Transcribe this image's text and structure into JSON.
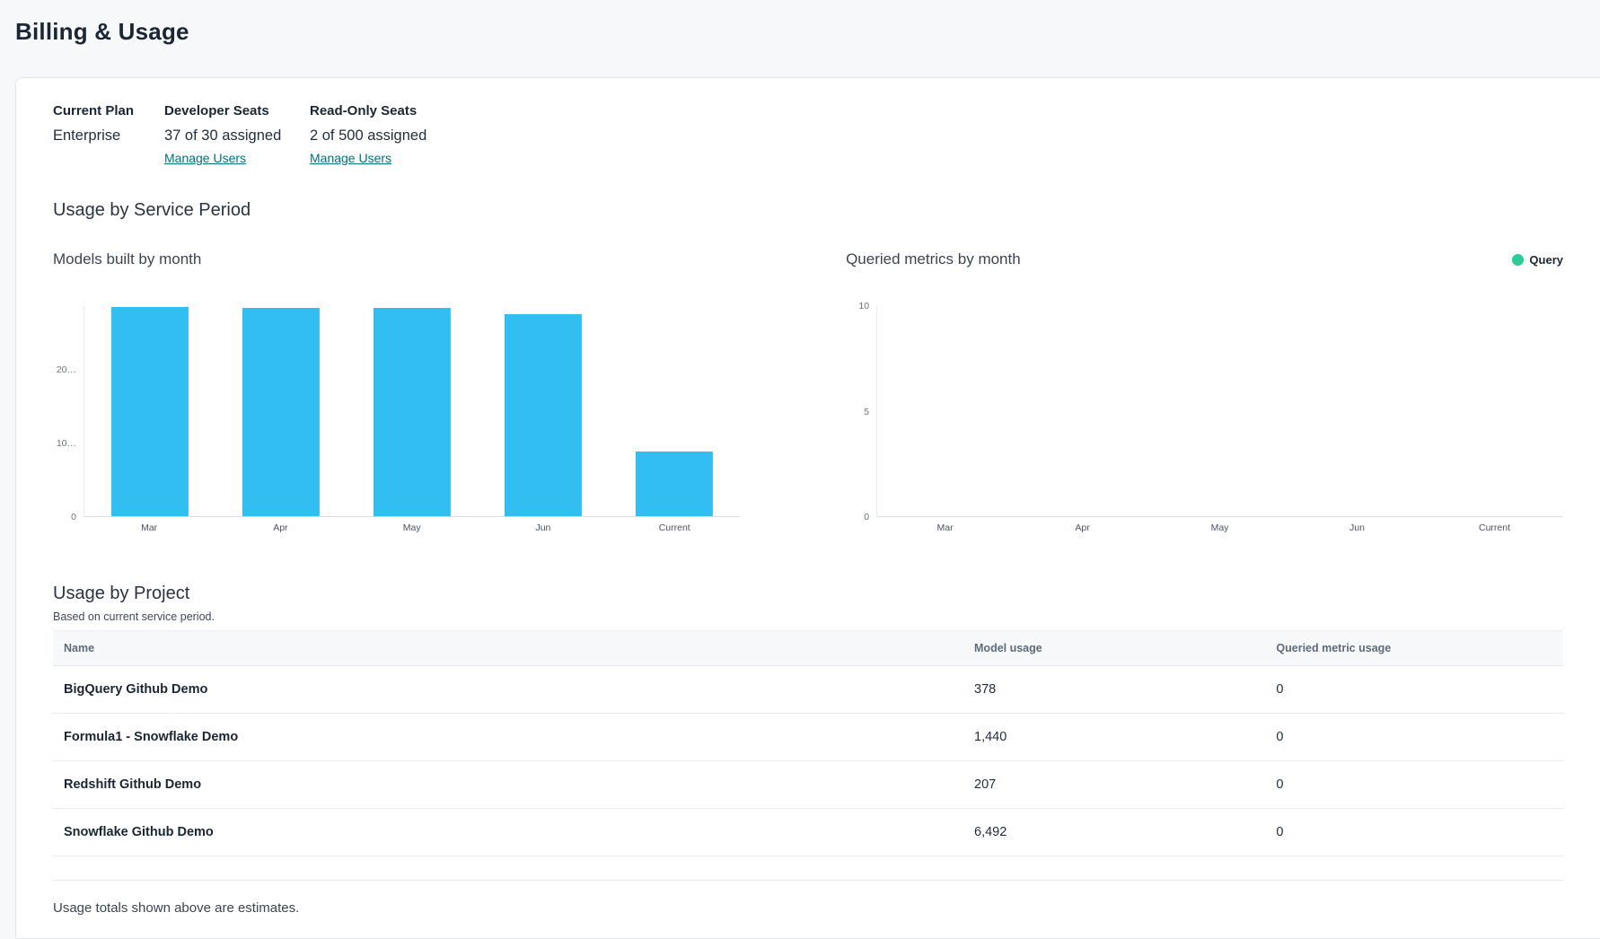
{
  "page": {
    "title": "Billing & Usage"
  },
  "plan": {
    "columns": [
      {
        "label": "Current Plan",
        "value": "Enterprise",
        "link": ""
      },
      {
        "label": "Developer Seats",
        "value": "37 of 30 assigned",
        "link": "Manage Users"
      },
      {
        "label": "Read-Only Seats",
        "value": "2 of 500 assigned",
        "link": "Manage Users"
      }
    ]
  },
  "usage_section": {
    "title": "Usage by Service Period"
  },
  "charts": [
    {
      "title": "Models built by month",
      "chart_data": {
        "type": "bar",
        "categories": [
          "Mar",
          "Apr",
          "May",
          "Jun",
          "Current"
        ],
        "values": [
          28500,
          28400,
          28300,
          27500,
          8800
        ],
        "values_note": "estimated from bar heights; y tick labels truncated on screen",
        "bar_color": "#33bef2",
        "ylim": [
          0,
          28600
        ],
        "yticks": [
          {
            "value": 0,
            "label": "0"
          },
          {
            "value": 10000,
            "label": "10…"
          },
          {
            "value": 20000,
            "label": "20…"
          }
        ],
        "xlabel": "",
        "ylabel": "",
        "grid": false,
        "legend_position": "none"
      }
    },
    {
      "title": "Queried metrics by month",
      "legend": {
        "label": "Query",
        "color": "#2dcb96"
      },
      "chart_data": {
        "type": "bar",
        "categories": [
          "Mar",
          "Apr",
          "May",
          "Jun",
          "Current"
        ],
        "values": [
          0,
          0,
          0,
          0,
          0
        ],
        "series_name": "Query",
        "bar_color": "#2dcb96",
        "ylim": [
          0,
          10
        ],
        "yticks": [
          {
            "value": 0,
            "label": "0"
          },
          {
            "value": 5,
            "label": "5"
          },
          {
            "value": 10,
            "label": "10"
          }
        ],
        "xlabel": "",
        "ylabel": "",
        "grid": false,
        "legend_position": "top-right"
      }
    }
  ],
  "project_section": {
    "title": "Usage by Project",
    "subtitle": "Based on current service period."
  },
  "table": {
    "headers": [
      "Name",
      "Model usage",
      "Queried metric usage"
    ],
    "rows": [
      {
        "name": "BigQuery Github Demo",
        "model_usage": "378",
        "queried_metric_usage": "0"
      },
      {
        "name": "Formula1 - Snowflake Demo",
        "model_usage": "1,440",
        "queried_metric_usage": "0"
      },
      {
        "name": "Redshift Github Demo",
        "model_usage": "207",
        "queried_metric_usage": "0"
      },
      {
        "name": "Snowflake Github Demo",
        "model_usage": "6,492",
        "queried_metric_usage": "0"
      }
    ]
  },
  "footer": {
    "note": "Usage totals shown above are estimates."
  },
  "colors": {
    "page_background": "#f7f8fa",
    "card_background": "#ffffff",
    "card_border": "#e5e7eb",
    "bar_blue": "#33bef2",
    "legend_green": "#2dcb96",
    "link_teal": "#00707a",
    "heading_navy": "#1b2634"
  }
}
